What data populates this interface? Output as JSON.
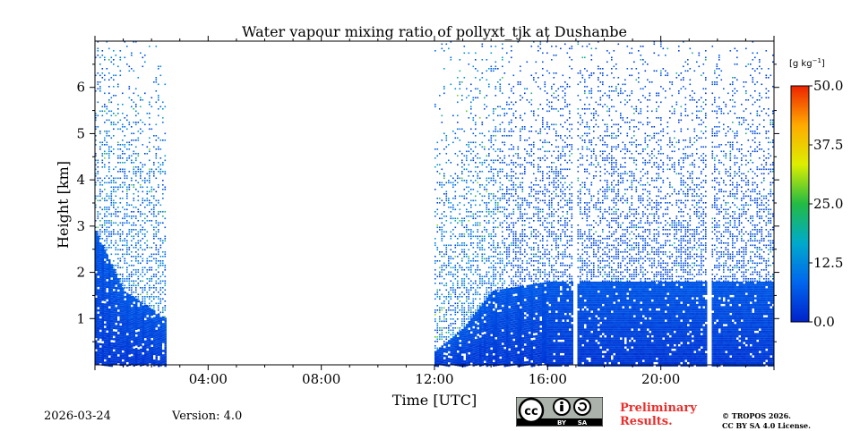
{
  "chart_data": {
    "type": "heatmap",
    "title": "Water vapour mixing ratio of pollyxt_tjk at Dushanbe",
    "xlabel": "Time [UTC]",
    "ylabel": "Height [km]",
    "x_range_hours": [
      0,
      24
    ],
    "y_range_km": [
      0,
      7
    ],
    "x_ticks": [
      {
        "hour": 4,
        "label": "04:00"
      },
      {
        "hour": 8,
        "label": "08:00"
      },
      {
        "hour": 12,
        "label": "12:00"
      },
      {
        "hour": 16,
        "label": "16:00"
      },
      {
        "hour": 20,
        "label": "20:00"
      }
    ],
    "y_ticks": [
      {
        "km": 1,
        "label": "1"
      },
      {
        "km": 2,
        "label": "2"
      },
      {
        "km": 3,
        "label": "3"
      },
      {
        "km": 4,
        "label": "4"
      },
      {
        "km": 5,
        "label": "5"
      },
      {
        "km": 6,
        "label": "6"
      }
    ],
    "colorbar": {
      "unit_label": "[g kg",
      "unit_sup": "−1",
      "unit_close": "]",
      "range": [
        0,
        50
      ],
      "ticks": [
        {
          "value": 0.0,
          "label": "0.0"
        },
        {
          "value": 12.5,
          "label": "12.5"
        },
        {
          "value": 25.0,
          "label": "25.0"
        },
        {
          "value": 37.5,
          "label": "37.5"
        },
        {
          "value": 50.0,
          "label": "50.0"
        }
      ],
      "colors": [
        "#0022cc",
        "#0066ee",
        "#00aacc",
        "#22bb44",
        "#ddee00",
        "#ffaa00",
        "#ee2200"
      ]
    },
    "data_segments_hours": [
      [
        0.0,
        2.5
      ],
      [
        12.0,
        16.85
      ],
      [
        17.05,
        21.6
      ],
      [
        21.8,
        24.0
      ]
    ],
    "dense_layer_top_km": [
      {
        "hour": 0.0,
        "km": 2.9
      },
      {
        "hour": 1.0,
        "km": 1.6
      },
      {
        "hour": 2.5,
        "km": 1.0
      },
      {
        "hour": 12.0,
        "km": 0.3
      },
      {
        "hour": 13.0,
        "km": 0.8
      },
      {
        "hour": 14.0,
        "km": 1.6
      },
      {
        "hour": 16.0,
        "km": 1.8
      },
      {
        "hour": 24.0,
        "km": 1.8
      }
    ]
  },
  "footer": {
    "date": "2026-03-24",
    "version": "Version: 4.0",
    "preliminary_line1": "Preliminary",
    "preliminary_line2": "Results.",
    "copyright_line1": "© TROPOS 2026.",
    "copyright_line2": "CC BY SA 4.0 License.",
    "license_badge": {
      "cc": "cc",
      "by": "BY",
      "sa": "SA"
    }
  }
}
